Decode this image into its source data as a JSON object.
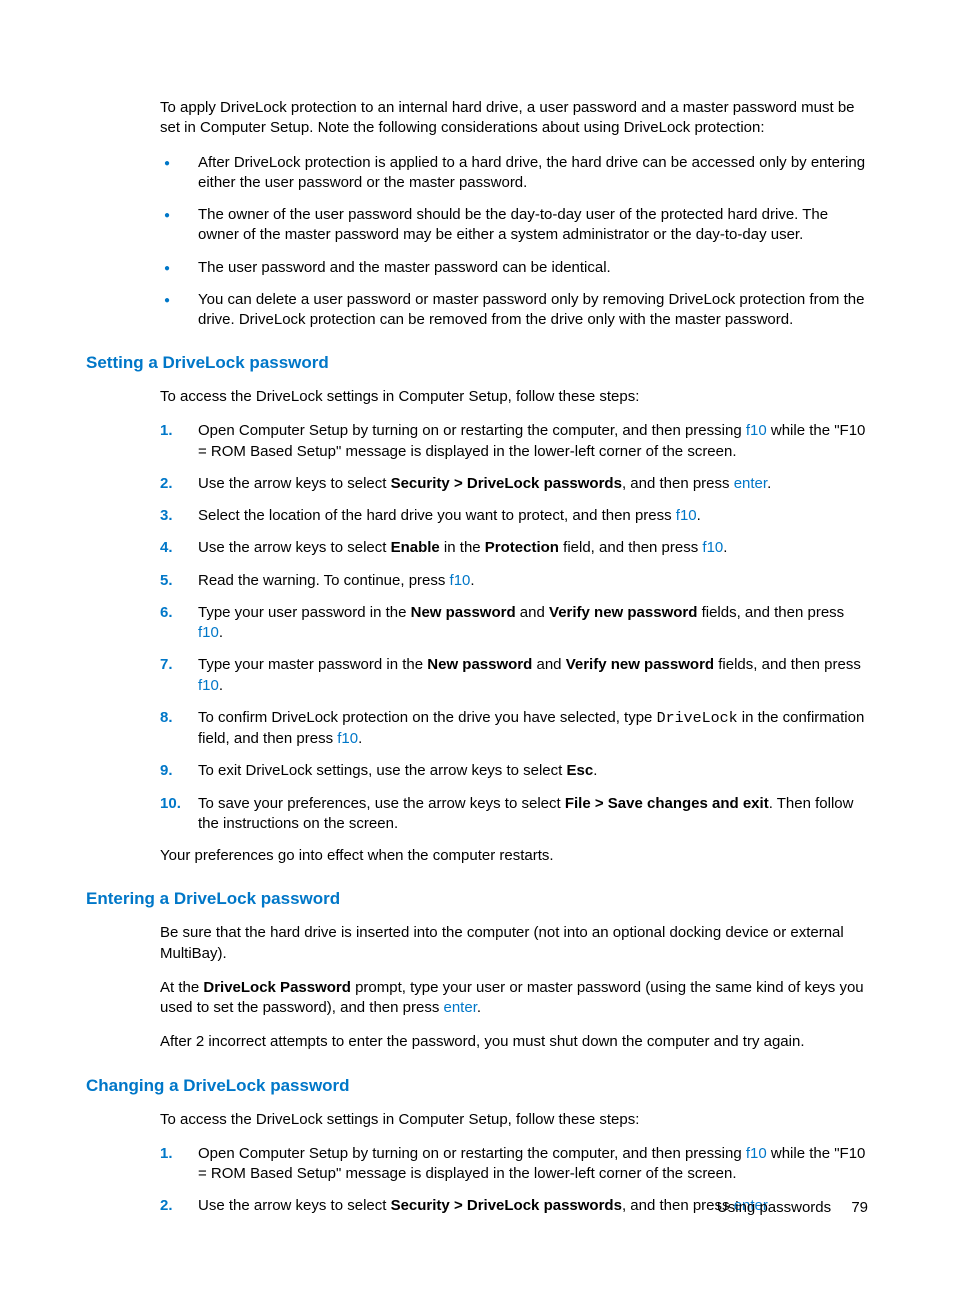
{
  "colors": {
    "accent": "#0077c8",
    "text": "#000000",
    "background": "#ffffff"
  },
  "typography": {
    "body_family": "Arial",
    "body_size_pt": 11,
    "heading_size_pt": 13,
    "mono_family": "Courier New"
  },
  "intro": {
    "p1": "To apply DriveLock protection to an internal hard drive, a user password and a master password must be set in Computer Setup. Note the following considerations about using DriveLock protection:",
    "bullets": [
      "After DriveLock protection is applied to a hard drive, the hard drive can be accessed only by entering either the user password or the master password.",
      "The owner of the user password should be the day-to-day user of the protected hard drive. The owner of the master password may be either a system administrator or the day-to-day user.",
      "The user password and the master password can be identical.",
      "You can delete a user password or master password only by removing DriveLock protection from the drive. DriveLock protection can be removed from the drive only with the master password."
    ]
  },
  "section1": {
    "heading": "Setting a DriveLock password",
    "lead": "To access the DriveLock settings in Computer Setup, follow these steps:",
    "steps": {
      "s1a": "Open Computer Setup by turning on or restarting the computer, and then pressing ",
      "s1k": "f10",
      "s1b": " while the \"F10 = ROM Based Setup\" message is displayed in the lower-left corner of the screen.",
      "s2a": "Use the arrow keys to select ",
      "s2bold": "Security > DriveLock passwords",
      "s2b": ", and then press ",
      "s2k": "enter",
      "s2c": ".",
      "s3a": "Select the location of the hard drive you want to protect, and then press ",
      "s3k": "f10",
      "s3b": ".",
      "s4a": "Use the arrow keys to select ",
      "s4bold1": "Enable",
      "s4b": " in the ",
      "s4bold2": "Protection",
      "s4c": " field, and then press ",
      "s4k": "f10",
      "s4d": ".",
      "s5a": "Read the warning. To continue, press ",
      "s5k": "f10",
      "s5b": ".",
      "s6a": "Type your user password in the ",
      "s6bold1": "New password",
      "s6b": " and ",
      "s6bold2": "Verify new password",
      "s6c": " fields, and then press ",
      "s6k": "f10",
      "s6d": ".",
      "s7a": "Type your master password in the ",
      "s7bold1": "New password",
      "s7b": " and ",
      "s7bold2": "Verify new password",
      "s7c": " fields, and then press ",
      "s7k": "f10",
      "s7d": ".",
      "s8a": "To confirm DriveLock protection on the drive you have selected, type ",
      "s8mono": "DriveLock",
      "s8b": " in the confirmation field, and then press ",
      "s8k": "f10",
      "s8c": ".",
      "s9a": "To exit DriveLock settings, use the arrow keys to select ",
      "s9bold": "Esc",
      "s9b": ".",
      "s10a": "To save your preferences, use the arrow keys to select ",
      "s10bold": "File > Save changes and exit",
      "s10b": ". Then follow the instructions on the screen."
    },
    "tail": "Your preferences go into effect when the computer restarts."
  },
  "section2": {
    "heading": "Entering a DriveLock password",
    "p1": "Be sure that the hard drive is inserted into the computer (not into an optional docking device or external MultiBay).",
    "p2a": "At the ",
    "p2bold": "DriveLock Password",
    "p2b": " prompt, type your user or master password (using the same kind of keys you used to set the password), and then press ",
    "p2k": "enter",
    "p2c": ".",
    "p3": "After 2 incorrect attempts to enter the password, you must shut down the computer and try again."
  },
  "section3": {
    "heading": "Changing a DriveLock password",
    "lead": "To access the DriveLock settings in Computer Setup, follow these steps:",
    "steps": {
      "s1a": "Open Computer Setup by turning on or restarting the computer, and then pressing ",
      "s1k": "f10",
      "s1b": " while the \"F10 = ROM Based Setup\" message is displayed in the lower-left corner of the screen.",
      "s2a": "Use the arrow keys to select ",
      "s2bold": "Security > DriveLock passwords",
      "s2b": ", and then press ",
      "s2k": "enter",
      "s2c": "."
    }
  },
  "footer": {
    "section": "Using passwords",
    "page": "79"
  }
}
